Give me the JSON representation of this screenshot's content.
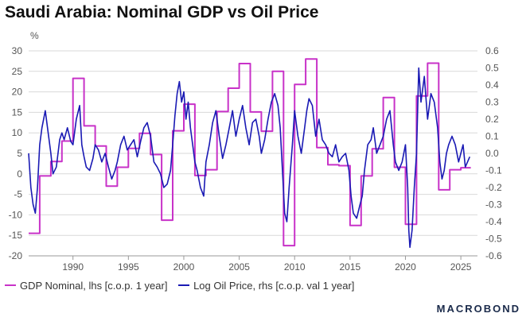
{
  "title": "Saudi Arabia: Nominal GDP vs Oil Price",
  "brand": "MACROBOND",
  "chart_data": {
    "type": "line",
    "title": "Saudi Arabia: Nominal GDP vs Oil Price",
    "ylabel_left": "%",
    "ylim_left": [
      -20,
      30
    ],
    "ylim_right": [
      -0.6,
      0.6
    ],
    "xlim": [
      1986,
      2026.5
    ],
    "x_ticks": [
      1990,
      1995,
      2000,
      2005,
      2010,
      2015,
      2020,
      2025
    ],
    "y_ticks_left": [
      -20,
      -15,
      -10,
      -5,
      0,
      5,
      10,
      15,
      20,
      25,
      30
    ],
    "y_ticks_right": [
      -0.6,
      -0.5,
      -0.4,
      -0.3,
      -0.2,
      -0.1,
      0.0,
      0.1,
      0.2,
      0.3,
      0.4,
      0.5,
      0.6
    ],
    "y_tick_labels_left": [
      "-20",
      "-15",
      "-10",
      "-5",
      "0",
      "5",
      "10",
      "15",
      "20",
      "25",
      "30"
    ],
    "y_tick_labels_right": [
      "-0.6",
      "-0.5",
      "-0.4",
      "-0.3",
      "-0.2",
      "-0.1",
      "0.0",
      "0.1",
      "0.2",
      "0.3",
      "0.4",
      "0.5",
      "0.6"
    ],
    "grid": true,
    "series": [
      {
        "name": "GDP Nominal, lhs [c.o.p. 1 year]",
        "axis": "left",
        "color": "#c832c8",
        "step": true,
        "x": [
          1986.0,
          1987.0,
          1988.0,
          1989.0,
          1990.0,
          1991.0,
          1992.0,
          1993.0,
          1994.0,
          1995.0,
          1996.0,
          1997.0,
          1998.0,
          1999.0,
          2000.0,
          2001.0,
          2002.0,
          2003.0,
          2004.0,
          2005.0,
          2006.0,
          2007.0,
          2008.0,
          2009.0,
          2010.0,
          2011.0,
          2012.0,
          2013.0,
          2014.0,
          2015.0,
          2016.0,
          2017.0,
          2018.0,
          2019.0,
          2020.0,
          2021.0,
          2022.0,
          2023.0,
          2024.0,
          2025.0,
          2025.9
        ],
        "values": [
          -14.5,
          -0.5,
          3.0,
          8.0,
          23.3,
          11.7,
          6.8,
          -3.0,
          1.6,
          6.2,
          9.9,
          4.7,
          -11.3,
          10.5,
          17.0,
          -0.4,
          1.0,
          15.2,
          20.9,
          26.9,
          15.1,
          10.4,
          25.0,
          -17.5,
          21.8,
          28.0,
          6.4,
          2.2,
          2.0,
          -12.6,
          -0.5,
          6.1,
          18.6,
          1.6,
          -12.3,
          19.0,
          27.0,
          -3.9,
          1.0,
          1.5,
          1.5
        ]
      },
      {
        "name": "Log Oil Price, rhs [c.o.p. val 1 year]",
        "axis": "right",
        "color": "#1a1ab4",
        "step": false,
        "x": [
          1986.0,
          1986.2,
          1986.4,
          1986.6,
          1986.8,
          1987.0,
          1987.2,
          1987.5,
          1987.8,
          1988.0,
          1988.2,
          1988.5,
          1988.8,
          1989.0,
          1989.2,
          1989.5,
          1989.8,
          1990.0,
          1990.3,
          1990.6,
          1990.8,
          1991.0,
          1991.2,
          1991.5,
          1991.8,
          1992.0,
          1992.3,
          1992.6,
          1992.9,
          1993.2,
          1993.5,
          1993.8,
          1994.0,
          1994.3,
          1994.6,
          1994.9,
          1995.2,
          1995.5,
          1995.8,
          1996.1,
          1996.4,
          1996.7,
          1997.0,
          1997.3,
          1997.6,
          1997.9,
          1998.2,
          1998.5,
          1998.8,
          1999.0,
          1999.2,
          1999.4,
          1999.6,
          1999.8,
          2000.0,
          2000.2,
          2000.4,
          2000.6,
          2000.8,
          2001.0,
          2001.2,
          2001.5,
          2001.8,
          2002.0,
          2002.3,
          2002.6,
          2002.9,
          2003.2,
          2003.5,
          2003.8,
          2004.1,
          2004.4,
          2004.7,
          2005.0,
          2005.3,
          2005.6,
          2005.9,
          2006.2,
          2006.5,
          2006.8,
          2007.0,
          2007.3,
          2007.6,
          2007.9,
          2008.2,
          2008.5,
          2008.7,
          2008.9,
          2009.1,
          2009.3,
          2009.5,
          2009.8,
          2010.0,
          2010.3,
          2010.6,
          2010.9,
          2011.1,
          2011.3,
          2011.6,
          2011.9,
          2012.2,
          2012.5,
          2012.8,
          2013.1,
          2013.4,
          2013.7,
          2014.0,
          2014.3,
          2014.6,
          2014.9,
          2015.1,
          2015.3,
          2015.6,
          2015.9,
          2016.1,
          2016.3,
          2016.6,
          2016.9,
          2017.1,
          2017.4,
          2017.7,
          2018.0,
          2018.3,
          2018.6,
          2018.9,
          2019.1,
          2019.4,
          2019.7,
          2020.0,
          2020.2,
          2020.3,
          2020.4,
          2020.6,
          2020.8,
          2021.0,
          2021.1,
          2021.2,
          2021.4,
          2021.7,
          2022.0,
          2022.3,
          2022.6,
          2022.9,
          2023.1,
          2023.3,
          2023.5,
          2023.7,
          2023.9,
          2024.2,
          2024.5,
          2024.8,
          2025.0,
          2025.2,
          2025.4,
          2025.6,
          2025.8
        ],
        "values": [
          0.0,
          -0.2,
          -0.3,
          -0.35,
          -0.2,
          0.05,
          0.15,
          0.25,
          0.1,
          0.0,
          -0.12,
          -0.08,
          0.08,
          0.12,
          0.08,
          0.15,
          0.07,
          0.05,
          0.2,
          0.28,
          0.05,
          -0.02,
          -0.08,
          -0.1,
          -0.03,
          0.05,
          0.02,
          -0.05,
          0.0,
          -0.08,
          -0.15,
          -0.1,
          -0.05,
          0.05,
          0.1,
          0.02,
          0.05,
          0.08,
          -0.02,
          0.07,
          0.15,
          0.18,
          0.1,
          -0.05,
          -0.08,
          -0.12,
          -0.2,
          -0.18,
          -0.1,
          0.05,
          0.22,
          0.35,
          0.42,
          0.3,
          0.36,
          0.2,
          0.3,
          0.15,
          0.05,
          -0.05,
          -0.1,
          -0.2,
          -0.25,
          -0.05,
          0.05,
          0.18,
          0.25,
          0.1,
          -0.03,
          0.05,
          0.15,
          0.25,
          0.1,
          0.2,
          0.28,
          0.15,
          0.05,
          0.18,
          0.2,
          0.1,
          0.0,
          0.08,
          0.2,
          0.3,
          0.35,
          0.28,
          0.15,
          -0.1,
          -0.35,
          -0.4,
          -0.2,
          0.05,
          0.25,
          0.1,
          0.0,
          0.15,
          0.25,
          0.32,
          0.28,
          0.1,
          0.2,
          0.08,
          0.05,
          0.0,
          -0.02,
          0.05,
          -0.05,
          -0.02,
          0.0,
          -0.1,
          -0.25,
          -0.35,
          -0.38,
          -0.3,
          -0.25,
          -0.1,
          0.05,
          0.08,
          0.15,
          0.0,
          0.05,
          0.1,
          0.2,
          0.25,
          0.05,
          -0.05,
          -0.1,
          -0.05,
          0.05,
          -0.2,
          -0.45,
          -0.55,
          -0.45,
          -0.2,
          0.0,
          0.25,
          0.5,
          0.3,
          0.45,
          0.2,
          0.35,
          0.3,
          0.15,
          -0.05,
          -0.15,
          -0.1,
          0.0,
          0.05,
          0.1,
          0.05,
          -0.05,
          0.0,
          0.05,
          -0.08,
          -0.05,
          -0.02
        ]
      }
    ]
  },
  "legend": {
    "items": [
      {
        "label": "GDP Nominal, lhs [c.o.p. 1 year]",
        "color": "#c832c8"
      },
      {
        "label": "Log Oil Price, rhs [c.o.p. val 1 year]",
        "color": "#1a1ab4"
      }
    ]
  }
}
